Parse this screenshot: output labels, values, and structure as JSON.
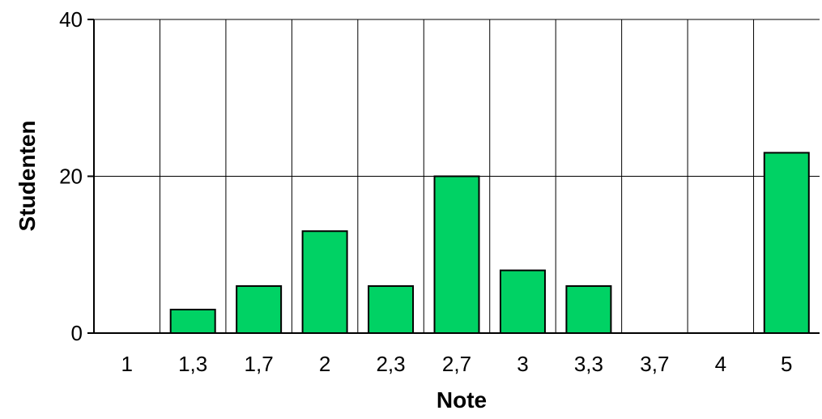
{
  "chart_data": {
    "type": "bar",
    "title": "",
    "xlabel": "Note",
    "ylabel": "Studenten",
    "categories": [
      "1",
      "1,3",
      "1,7",
      "2",
      "2,3",
      "2,7",
      "3",
      "3,3",
      "3,7",
      "4",
      "5"
    ],
    "values": [
      0,
      3,
      6,
      13,
      6,
      20,
      8,
      6,
      0,
      0,
      23
    ],
    "ylim": [
      0,
      40
    ],
    "yticks": [
      0,
      20,
      40
    ],
    "grid": true,
    "legend": "none",
    "colors": {
      "bar_fill": "#00d264",
      "bar_stroke": "#000000",
      "grid": "#000000",
      "background": "#ffffff"
    }
  }
}
